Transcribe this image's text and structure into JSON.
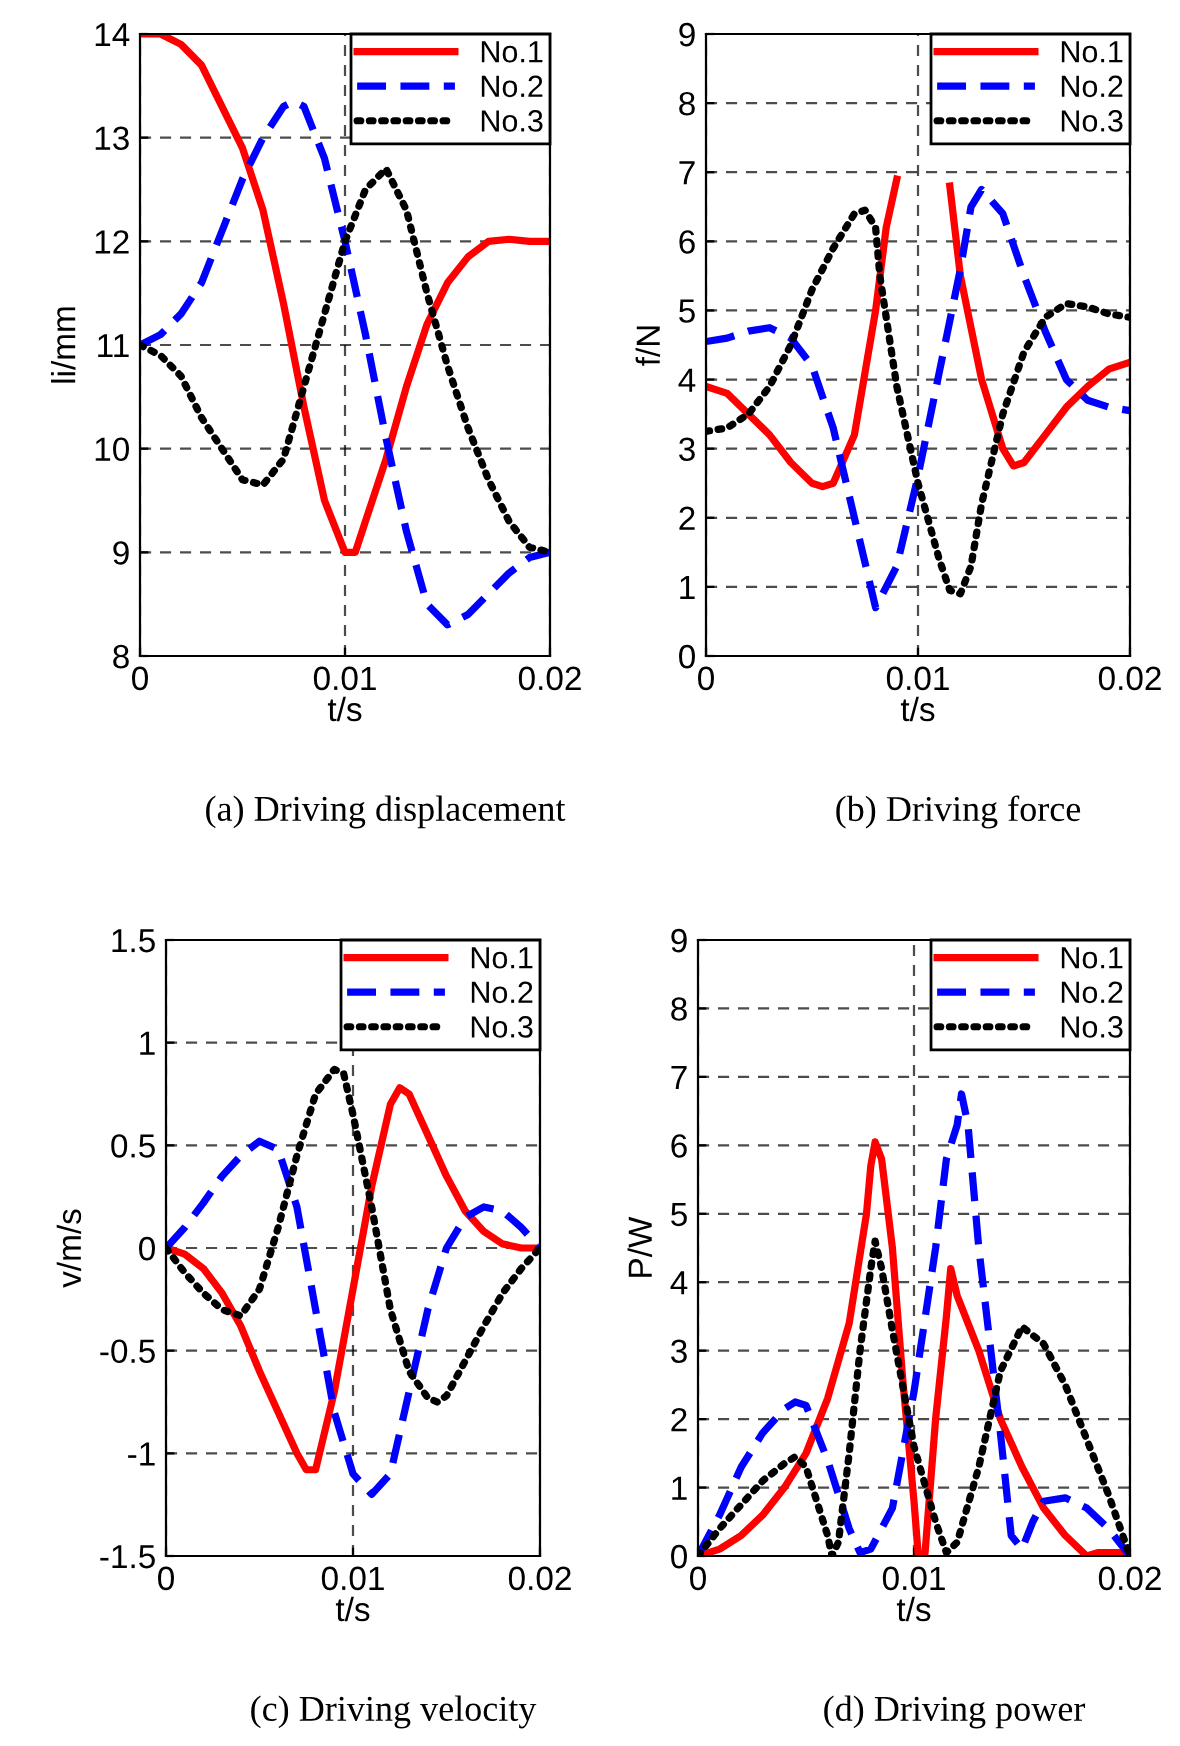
{
  "chart_data": [
    {
      "type": "line",
      "xlabel": "t/s",
      "ylabel": "li/mm",
      "annotations": [
        "(a) Driving displacement"
      ],
      "xlim": [
        0,
        0.02
      ],
      "xticks": [
        0,
        0.01,
        0.02
      ],
      "ylim": [
        8,
        14
      ],
      "yticks": [
        8,
        9,
        10,
        11,
        12,
        13,
        14
      ],
      "grid": true,
      "legend": "top right",
      "series": [
        {
          "name": "No.1",
          "color": "#ff0000",
          "line_style": "solid",
          "x": [
            0,
            0.001,
            0.002,
            0.003,
            0.004,
            0.005,
            0.006,
            0.007,
            0.008,
            0.009,
            0.01,
            0.0105,
            0.011,
            0.012,
            0.013,
            0.014,
            0.015,
            0.016,
            0.017,
            0.018,
            0.019,
            0.02
          ],
          "values": [
            14,
            14,
            13.9,
            13.7,
            13.3,
            12.9,
            12.3,
            11.4,
            10.4,
            9.5,
            9.0,
            9.0,
            9.3,
            9.9,
            10.6,
            11.2,
            11.6,
            11.85,
            12.0,
            12.02,
            12.0,
            12.0
          ]
        },
        {
          "name": "No.2",
          "color": "#0000ff",
          "line_style": "dashed",
          "x": [
            0,
            0.001,
            0.002,
            0.003,
            0.004,
            0.005,
            0.006,
            0.007,
            0.0075,
            0.008,
            0.009,
            0.01,
            0.011,
            0.012,
            0.013,
            0.014,
            0.015,
            0.016,
            0.017,
            0.018,
            0.019,
            0.02
          ],
          "values": [
            11,
            11.1,
            11.3,
            11.6,
            12.1,
            12.6,
            13.0,
            13.3,
            13.35,
            13.3,
            12.8,
            12.0,
            11.1,
            10.1,
            9.2,
            8.5,
            8.3,
            8.4,
            8.6,
            8.8,
            8.95,
            9.0
          ]
        },
        {
          "name": "No.3",
          "color": "#000000",
          "line_style": "dotted",
          "x": [
            0,
            0.001,
            0.002,
            0.003,
            0.004,
            0.005,
            0.006,
            0.007,
            0.008,
            0.009,
            0.01,
            0.011,
            0.012,
            0.013,
            0.014,
            0.015,
            0.016,
            0.017,
            0.018,
            0.019,
            0.02
          ],
          "values": [
            11,
            10.9,
            10.7,
            10.3,
            10.0,
            9.7,
            9.65,
            9.9,
            10.6,
            11.3,
            12.0,
            12.5,
            12.7,
            12.3,
            11.5,
            10.8,
            10.2,
            9.7,
            9.3,
            9.05,
            9.0
          ]
        }
      ]
    },
    {
      "type": "line",
      "xlabel": "t/s",
      "ylabel": "f/N",
      "annotations": [
        "(b) Driving force"
      ],
      "xlim": [
        0,
        0.02
      ],
      "xticks": [
        0,
        0.01,
        0.02
      ],
      "ylim": [
        0,
        9
      ],
      "yticks": [
        0,
        1,
        2,
        3,
        4,
        5,
        6,
        7,
        8,
        9
      ],
      "grid": true,
      "legend": "top right",
      "series": [
        {
          "name": "No.1",
          "color": "#ff0000",
          "line_style": "solid",
          "x": [
            0,
            0.001,
            0.002,
            0.003,
            0.004,
            0.005,
            0.0055,
            0.006,
            0.007,
            0.008,
            0.0085,
            0.009,
            0.01,
            0.011,
            0.0115,
            0.012,
            0.013,
            0.014,
            0.0145,
            0.015,
            0.016,
            0.017,
            0.018,
            0.019,
            0.02
          ],
          "values": [
            3.9,
            3.8,
            3.5,
            3.2,
            2.8,
            2.5,
            2.45,
            2.5,
            3.2,
            5.0,
            6.2,
            6.9,
            null,
            null,
            6.8,
            5.5,
            4.0,
            3.0,
            2.75,
            2.8,
            3.2,
            3.6,
            3.9,
            4.15,
            4.25
          ]
        },
        {
          "name": "No.2",
          "color": "#0000ff",
          "line_style": "dashed",
          "x": [
            0,
            0.001,
            0.002,
            0.003,
            0.004,
            0.005,
            0.006,
            0.007,
            0.008,
            0.009,
            0.01,
            0.011,
            0.012,
            0.0125,
            0.013,
            0.014,
            0.015,
            0.016,
            0.017,
            0.018,
            0.019,
            0.02
          ],
          "values": [
            4.55,
            4.6,
            4.7,
            4.75,
            4.6,
            4.2,
            3.3,
            2.0,
            0.7,
            1.3,
            2.6,
            4.1,
            5.6,
            6.5,
            6.75,
            6.4,
            5.5,
            4.7,
            4.0,
            3.7,
            3.6,
            3.55
          ]
        },
        {
          "name": "No.3",
          "color": "#000000",
          "line_style": "dotted",
          "x": [
            0,
            0.001,
            0.002,
            0.003,
            0.004,
            0.005,
            0.006,
            0.007,
            0.0075,
            0.008,
            0.0082,
            0.009,
            0.01,
            0.011,
            0.0115,
            0.012,
            0.0125,
            0.013,
            0.014,
            0.015,
            0.016,
            0.017,
            0.018,
            0.019,
            0.02
          ],
          "values": [
            3.25,
            3.3,
            3.5,
            3.9,
            4.5,
            5.3,
            5.9,
            6.4,
            6.45,
            6.2,
            5.5,
            3.9,
            2.5,
            1.4,
            0.95,
            0.9,
            1.3,
            2.2,
            3.5,
            4.4,
            4.9,
            5.1,
            5.05,
            4.95,
            4.9
          ]
        }
      ]
    },
    {
      "type": "line",
      "xlabel": "t/s",
      "ylabel": "v/m/s",
      "annotations": [
        "(c) Driving velocity"
      ],
      "xlim": [
        0,
        0.02
      ],
      "xticks": [
        0,
        0.01,
        0.02
      ],
      "ylim": [
        -1.5,
        1.5
      ],
      "yticks": [
        -1.5,
        -1,
        -0.5,
        0,
        0.5,
        1,
        1.5
      ],
      "grid": true,
      "legend": "top right",
      "series": [
        {
          "name": "No.1",
          "color": "#ff0000",
          "line_style": "solid",
          "x": [
            0,
            0.001,
            0.002,
            0.003,
            0.004,
            0.005,
            0.006,
            0.007,
            0.0075,
            0.008,
            0.009,
            0.01,
            0.011,
            0.012,
            0.0125,
            0.013,
            0.014,
            0.015,
            0.016,
            0.017,
            0.018,
            0.019,
            0.02
          ],
          "values": [
            0,
            -0.03,
            -0.1,
            -0.22,
            -0.38,
            -0.6,
            -0.8,
            -1.0,
            -1.08,
            -1.08,
            -0.7,
            -0.2,
            0.3,
            0.7,
            0.78,
            0.75,
            0.55,
            0.35,
            0.18,
            0.08,
            0.02,
            0.0,
            0.0
          ]
        },
        {
          "name": "No.2",
          "color": "#0000ff",
          "line_style": "dashed",
          "x": [
            0,
            0.001,
            0.002,
            0.003,
            0.004,
            0.005,
            0.006,
            0.007,
            0.008,
            0.009,
            0.01,
            0.011,
            0.012,
            0.013,
            0.014,
            0.015,
            0.016,
            0.017,
            0.018,
            0.019,
            0.02
          ],
          "values": [
            0,
            0.1,
            0.22,
            0.35,
            0.45,
            0.52,
            0.48,
            0.2,
            -0.3,
            -0.8,
            -1.1,
            -1.2,
            -1.1,
            -0.7,
            -0.3,
            0.0,
            0.15,
            0.2,
            0.18,
            0.1,
            0.0
          ]
        },
        {
          "name": "No.3",
          "color": "#000000",
          "line_style": "dotted",
          "x": [
            0,
            0.001,
            0.002,
            0.003,
            0.004,
            0.005,
            0.006,
            0.007,
            0.008,
            0.009,
            0.0095,
            0.01,
            0.011,
            0.012,
            0.013,
            0.014,
            0.0145,
            0.015,
            0.016,
            0.017,
            0.018,
            0.019,
            0.02
          ],
          "values": [
            0,
            -0.12,
            -0.22,
            -0.3,
            -0.33,
            -0.2,
            0.1,
            0.45,
            0.75,
            0.87,
            0.85,
            0.65,
            0.2,
            -0.3,
            -0.6,
            -0.73,
            -0.75,
            -0.72,
            -0.55,
            -0.38,
            -0.22,
            -0.1,
            0.0
          ]
        }
      ]
    },
    {
      "type": "line",
      "xlabel": "t/s",
      "ylabel": "P/W",
      "annotations": [
        "(d) Driving power"
      ],
      "xlim": [
        0,
        0.02
      ],
      "xticks": [
        0,
        0.01,
        0.02
      ],
      "ylim": [
        0,
        9
      ],
      "yticks": [
        0,
        1,
        2,
        3,
        4,
        5,
        6,
        7,
        8,
        9
      ],
      "grid": true,
      "legend": "top right",
      "series": [
        {
          "name": "No.1",
          "color": "#ff0000",
          "line_style": "solid",
          "x": [
            0,
            0.001,
            0.002,
            0.003,
            0.004,
            0.005,
            0.006,
            0.007,
            0.0078,
            0.008,
            0.0082,
            0.0085,
            0.009,
            0.0095,
            0.01,
            0.0102,
            0.0105,
            0.011,
            0.0115,
            0.0117,
            0.012,
            0.013,
            0.014,
            0.015,
            0.016,
            0.017,
            0.018,
            0.0185,
            0.019,
            0.0195,
            0.02
          ],
          "values": [
            0,
            0.1,
            0.3,
            0.6,
            1.0,
            1.5,
            2.3,
            3.4,
            5.0,
            5.7,
            6.05,
            5.8,
            4.5,
            2.5,
            0.8,
            0.0,
            0.0,
            2.0,
            3.5,
            4.2,
            3.8,
            3.0,
            2.0,
            1.3,
            0.7,
            0.3,
            0.0,
            0.05,
            0.05,
            0.05,
            0.0
          ]
        },
        {
          "name": "No.2",
          "color": "#0000ff",
          "line_style": "dashed",
          "x": [
            0,
            0.001,
            0.002,
            0.003,
            0.004,
            0.0045,
            0.005,
            0.006,
            0.007,
            0.0075,
            0.008,
            0.009,
            0.01,
            0.011,
            0.0115,
            0.012,
            0.0122,
            0.0125,
            0.013,
            0.014,
            0.0145,
            0.015,
            0.0155,
            0.016,
            0.017,
            0.018,
            0.019,
            0.02
          ],
          "values": [
            0,
            0.6,
            1.3,
            1.8,
            2.15,
            2.25,
            2.2,
            1.4,
            0.4,
            0.05,
            0.1,
            0.7,
            2.4,
            4.5,
            5.8,
            6.3,
            6.75,
            6.3,
            4.5,
            1.8,
            0.3,
            0.1,
            0.5,
            0.8,
            0.85,
            0.7,
            0.4,
            0.0
          ]
        },
        {
          "name": "No.3",
          "color": "#000000",
          "line_style": "dotted",
          "x": [
            0,
            0.001,
            0.002,
            0.003,
            0.004,
            0.0045,
            0.005,
            0.0055,
            0.006,
            0.0062,
            0.0065,
            0.007,
            0.0075,
            0.008,
            0.0082,
            0.0085,
            0.009,
            0.01,
            0.011,
            0.0115,
            0.012,
            0.013,
            0.014,
            0.015,
            0.016,
            0.017,
            0.018,
            0.019,
            0.02
          ],
          "values": [
            0,
            0.4,
            0.75,
            1.1,
            1.35,
            1.45,
            1.3,
            0.8,
            0.3,
            0.0,
            0.2,
            1.5,
            3.0,
            4.2,
            4.6,
            4.2,
            3.3,
            1.6,
            0.5,
            0.05,
            0.2,
            1.3,
            2.7,
            3.35,
            3.1,
            2.5,
            1.7,
            0.9,
            0.0
          ]
        }
      ]
    }
  ]
}
